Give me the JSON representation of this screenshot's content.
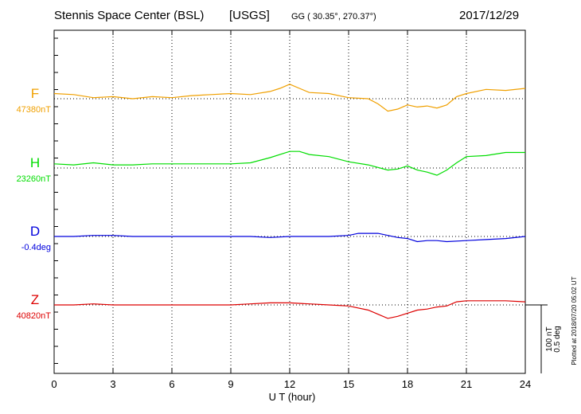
{
  "header": {
    "station": "Stennis Space Center (BSL)",
    "agency": "[USGS]",
    "coords": "GG ( 30.35°, 270.37°)",
    "date": "2017/12/29"
  },
  "footer": {
    "plotted": "Plotted at 2018/07/20 05:02 UT"
  },
  "chart_data": {
    "type": "line",
    "title": "Stennis Space Center (BSL)",
    "xlabel": "U T (hour)",
    "xlim": [
      0,
      24
    ],
    "xticks": [
      "0",
      "3",
      "6",
      "9",
      "12",
      "15",
      "18",
      "21",
      "24"
    ],
    "grid": "dotted vertical lines every 3 hours; dotted baseline per trace",
    "scale_bar": {
      "label1": "100 nT",
      "label2": "0.5 deg"
    },
    "series": [
      {
        "name": "F",
        "baseline": "47380nT",
        "color": "#f0a000",
        "x": [
          0,
          1,
          2,
          3,
          4,
          5,
          6,
          7,
          8,
          9,
          10,
          11,
          11.5,
          12,
          12.5,
          13,
          14,
          15,
          16,
          16.5,
          17,
          17.5,
          18,
          18.5,
          19,
          19.5,
          20,
          20.5,
          21,
          22,
          23,
          24
        ],
        "values": [
          5,
          4,
          1,
          2,
          0,
          2,
          1,
          3,
          4,
          5,
          4,
          7,
          10,
          14,
          10,
          6,
          5,
          1,
          0,
          -5,
          -12,
          -10,
          -6,
          -8,
          -7,
          -9,
          -6,
          2,
          5,
          9,
          8,
          10
        ]
      },
      {
        "name": "H",
        "baseline": "23260nT",
        "color": "#00dd00",
        "x": [
          0,
          1,
          2,
          3,
          4,
          5,
          6,
          7,
          8,
          9,
          10,
          11,
          12,
          12.5,
          13,
          14,
          15,
          16,
          17,
          17.5,
          18,
          18.5,
          19,
          19.5,
          20,
          20.5,
          21,
          22,
          23,
          24
        ],
        "values": [
          4,
          3,
          5,
          3,
          3,
          4,
          4,
          4,
          4,
          4,
          5,
          10,
          16,
          16,
          13,
          11,
          6,
          3,
          -2,
          -1,
          2,
          -2,
          -4,
          -7,
          -2,
          5,
          11,
          12,
          15,
          15
        ]
      },
      {
        "name": "D",
        "baseline": "-0.4deg",
        "color": "#0000dd",
        "x": [
          0,
          1,
          2,
          3,
          4,
          5,
          6,
          7,
          8,
          9,
          10,
          11,
          12,
          13,
          14,
          15,
          15.5,
          16,
          16.5,
          17,
          17.5,
          18,
          18.5,
          19,
          19.5,
          20,
          21,
          22,
          23,
          24
        ],
        "values": [
          0,
          0,
          1,
          1,
          0,
          0,
          0,
          0,
          0,
          0,
          0,
          -1,
          0,
          0,
          0,
          1,
          3,
          3,
          3,
          1,
          -1,
          -2,
          -5,
          -4,
          -4,
          -5,
          -4,
          -3,
          -2,
          0
        ]
      },
      {
        "name": "Z",
        "baseline": "40820nT",
        "color": "#dd0000",
        "x": [
          0,
          1,
          2,
          3,
          4,
          5,
          6,
          7,
          8,
          9,
          10,
          11,
          12,
          13,
          14,
          15,
          16,
          16.5,
          17,
          17.5,
          18,
          18.5,
          19,
          19.5,
          20,
          20.5,
          21,
          22,
          23,
          24
        ],
        "values": [
          0,
          0,
          1,
          0,
          0,
          0,
          0,
          0,
          0,
          0,
          1,
          2,
          2,
          1,
          0,
          -1,
          -5,
          -9,
          -13,
          -11,
          -8,
          -5,
          -4,
          -2,
          -1,
          3,
          4,
          4,
          4,
          3
        ]
      }
    ]
  }
}
